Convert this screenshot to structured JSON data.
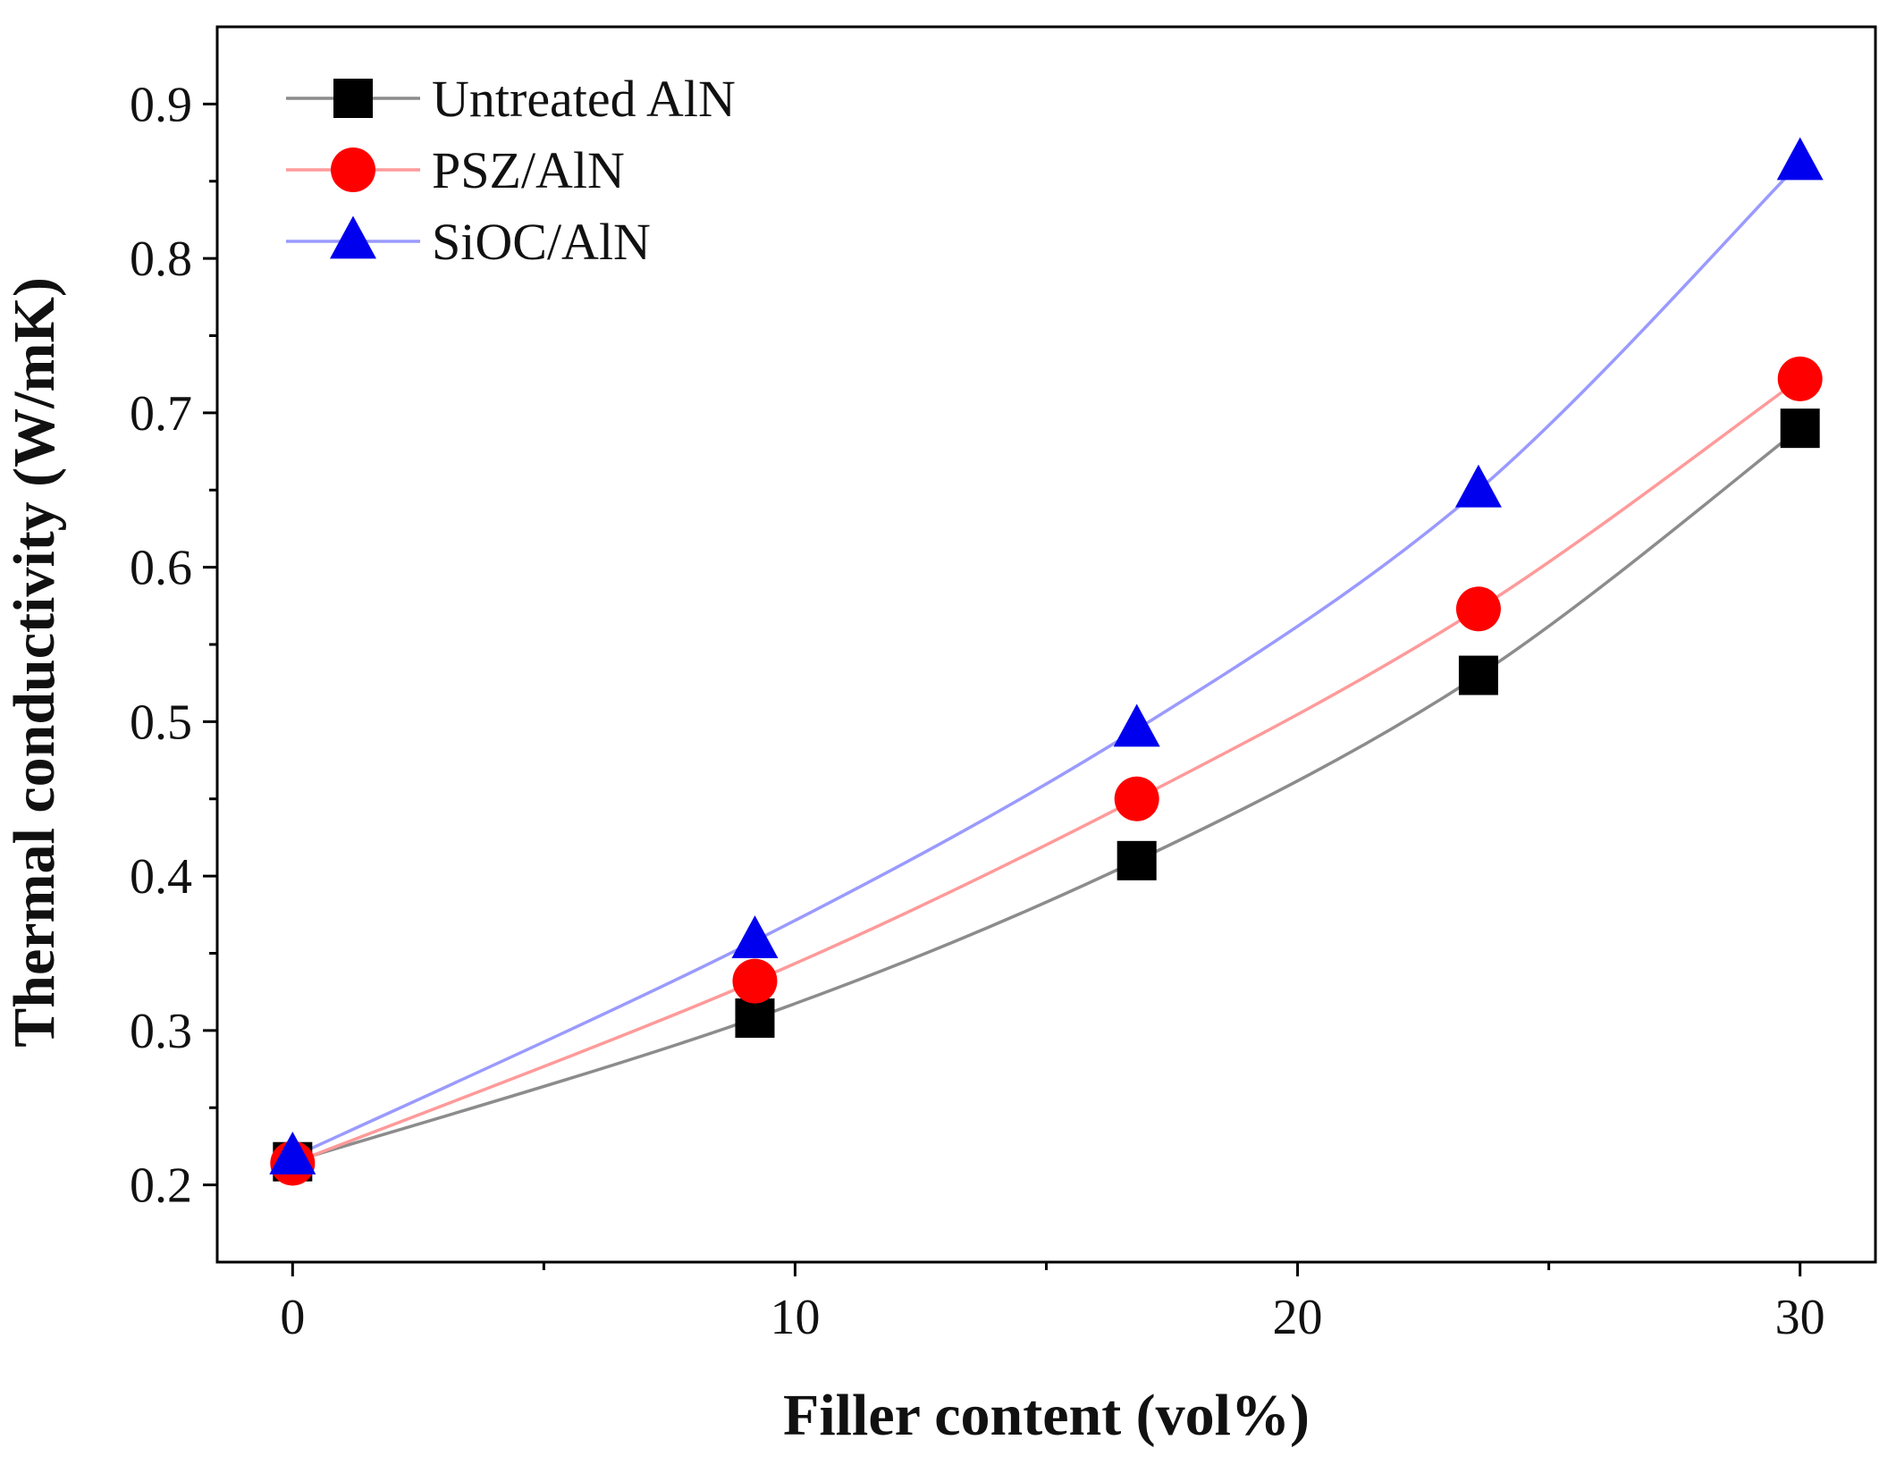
{
  "chart_data": {
    "type": "line",
    "title": "",
    "xlabel": "Filler content (vol%)",
    "ylabel": "Thermal conductivity (W/mK)",
    "xlim": [
      -1.5,
      31.5
    ],
    "ylim": [
      0.15,
      0.95
    ],
    "xticks": [
      0,
      10,
      20,
      30
    ],
    "xtick_labels": [
      "0",
      "10",
      "20",
      "30"
    ],
    "xminor": [
      5,
      15,
      25
    ],
    "yticks": [
      0.2,
      0.3,
      0.4,
      0.5,
      0.6,
      0.7,
      0.8,
      0.9
    ],
    "ytick_labels": [
      "0.2",
      "0.3",
      "0.4",
      "0.5",
      "0.6",
      "0.7",
      "0.8",
      "0.9"
    ],
    "yminor": [
      0.25,
      0.35,
      0.45,
      0.55,
      0.65,
      0.75,
      0.85
    ],
    "grid": false,
    "legend_position": "top-left",
    "x": [
      0,
      9.2,
      16.8,
      23.6,
      30
    ],
    "series": [
      {
        "name": "Untreated AlN",
        "marker": "square",
        "marker_color": "#000000",
        "line_color": "#8c8c8c",
        "values": [
          0.215,
          0.308,
          0.41,
          0.53,
          0.69
        ]
      },
      {
        "name": "PSZ/AlN",
        "marker": "circle",
        "marker_color": "#ff0000",
        "line_color": "#ff9a9a",
        "values": [
          0.214,
          0.332,
          0.45,
          0.573,
          0.722
        ]
      },
      {
        "name": "SiOC/AlN",
        "marker": "triangle",
        "marker_color": "#0000ee",
        "line_color": "#9a9aff",
        "values": [
          0.218,
          0.358,
          0.495,
          0.65,
          0.862
        ]
      }
    ]
  }
}
